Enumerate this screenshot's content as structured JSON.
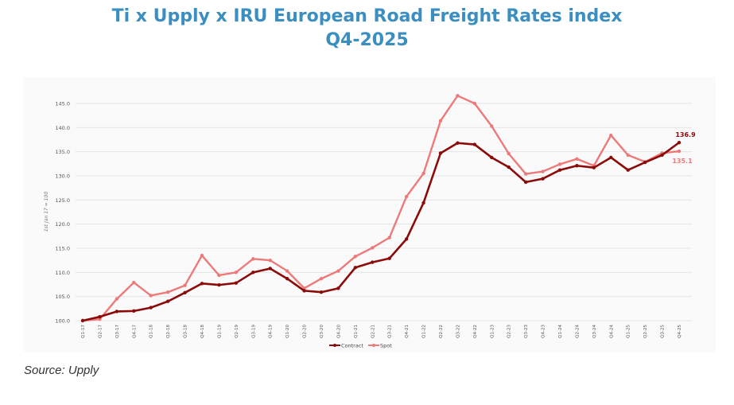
{
  "title_line1": "Ti x Upply x IRU European Road Freight Rates index",
  "title_line2": "Q4-2025",
  "source": "Source: Upply",
  "chart_data": {
    "type": "line",
    "title": "Ti x Upply x IRU European Road Freight Rates index Q4-2025",
    "xlabel": "",
    "ylabel": "1st Jan 17 = 100",
    "ylim": [
      100,
      145
    ],
    "yticks": [
      "100.0",
      "105.0",
      "110.0",
      "115.0",
      "120.0",
      "125.0",
      "130.0",
      "135.0",
      "140.0",
      "145.0"
    ],
    "grid": true,
    "legend": "bottom",
    "categories": [
      "Q1-17",
      "Q2-17",
      "Q3-17",
      "Q4-17",
      "Q1-18",
      "Q2-18",
      "Q3-18",
      "Q4-18",
      "Q1-19",
      "Q2-19",
      "Q3-19",
      "Q4-19",
      "Q1-20",
      "Q2-20",
      "Q3-20",
      "Q4-20",
      "Q1-21",
      "Q2-21",
      "Q3-21",
      "Q4-21",
      "Q1-22",
      "Q2-22",
      "Q3-22",
      "Q4-22",
      "Q1-23",
      "Q2-23",
      "Q3-23",
      "Q4-23",
      "Q1-24",
      "Q2-24",
      "Q3-24",
      "Q4-24",
      "Q1-25",
      "Q2-25",
      "Q3-25",
      "Q4-25"
    ],
    "series": [
      {
        "name": "Contract",
        "color": "#8b0a0a",
        "end_label": "136.9",
        "values": [
          100.0,
          100.8,
          101.9,
          102.0,
          102.7,
          104.0,
          105.8,
          107.7,
          107.4,
          107.8,
          110.0,
          110.8,
          108.7,
          106.2,
          105.9,
          106.7,
          111.0,
          112.1,
          112.9,
          116.9,
          124.4,
          134.7,
          136.8,
          136.5,
          133.8,
          131.8,
          128.7,
          129.4,
          131.2,
          132.1,
          131.7,
          133.8,
          131.2,
          132.8,
          134.3,
          136.9
        ]
      },
      {
        "name": "Spot",
        "color": "#ec7a7a",
        "end_label": "135.1",
        "values": [
          100.0,
          100.3,
          104.5,
          107.9,
          105.2,
          105.9,
          107.3,
          113.5,
          109.4,
          110.0,
          112.8,
          112.5,
          110.3,
          106.7,
          108.7,
          110.3,
          113.3,
          115.1,
          117.2,
          125.7,
          130.5,
          141.4,
          146.6,
          145.0,
          140.3,
          134.6,
          130.4,
          130.9,
          132.4,
          133.5,
          132.1,
          138.4,
          134.3,
          132.9,
          134.7,
          135.1
        ]
      }
    ]
  }
}
